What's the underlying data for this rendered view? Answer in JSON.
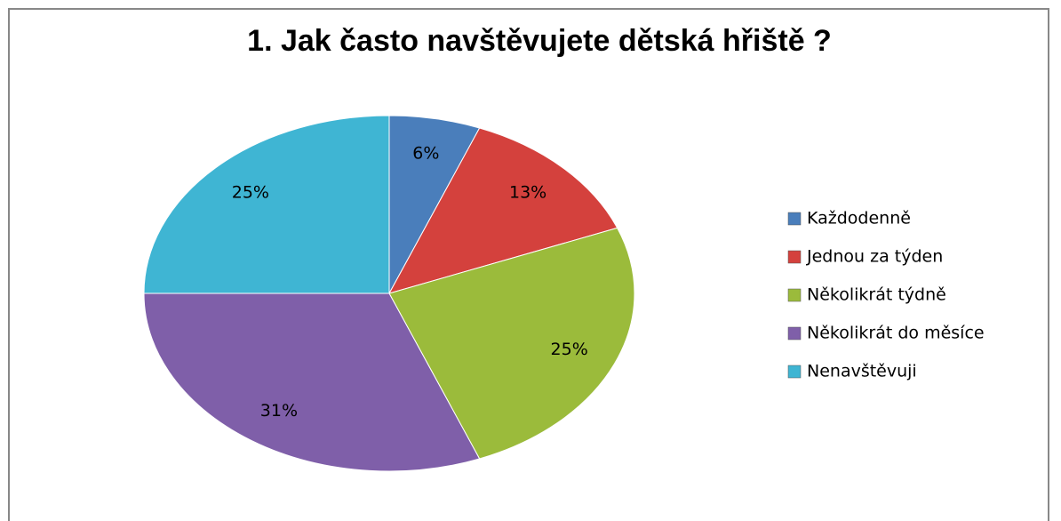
{
  "chart_data": {
    "type": "pie",
    "title": "1. Jak často navštěvujete dětská hřiště ?",
    "categories": [
      "Každodenně",
      "Jednou za týden",
      "Několikrát týdně",
      "Několikrát do měsíce",
      "Nenavštěvuji"
    ],
    "values": [
      6,
      13,
      25,
      31,
      25
    ],
    "value_labels": [
      "6%",
      "13%",
      "25%",
      "31%",
      "25%"
    ],
    "colors": [
      "#4a7ebb",
      "#d4413d",
      "#9bbb3b",
      "#7f5fa9",
      "#3fb5d3"
    ],
    "legend": "right"
  }
}
